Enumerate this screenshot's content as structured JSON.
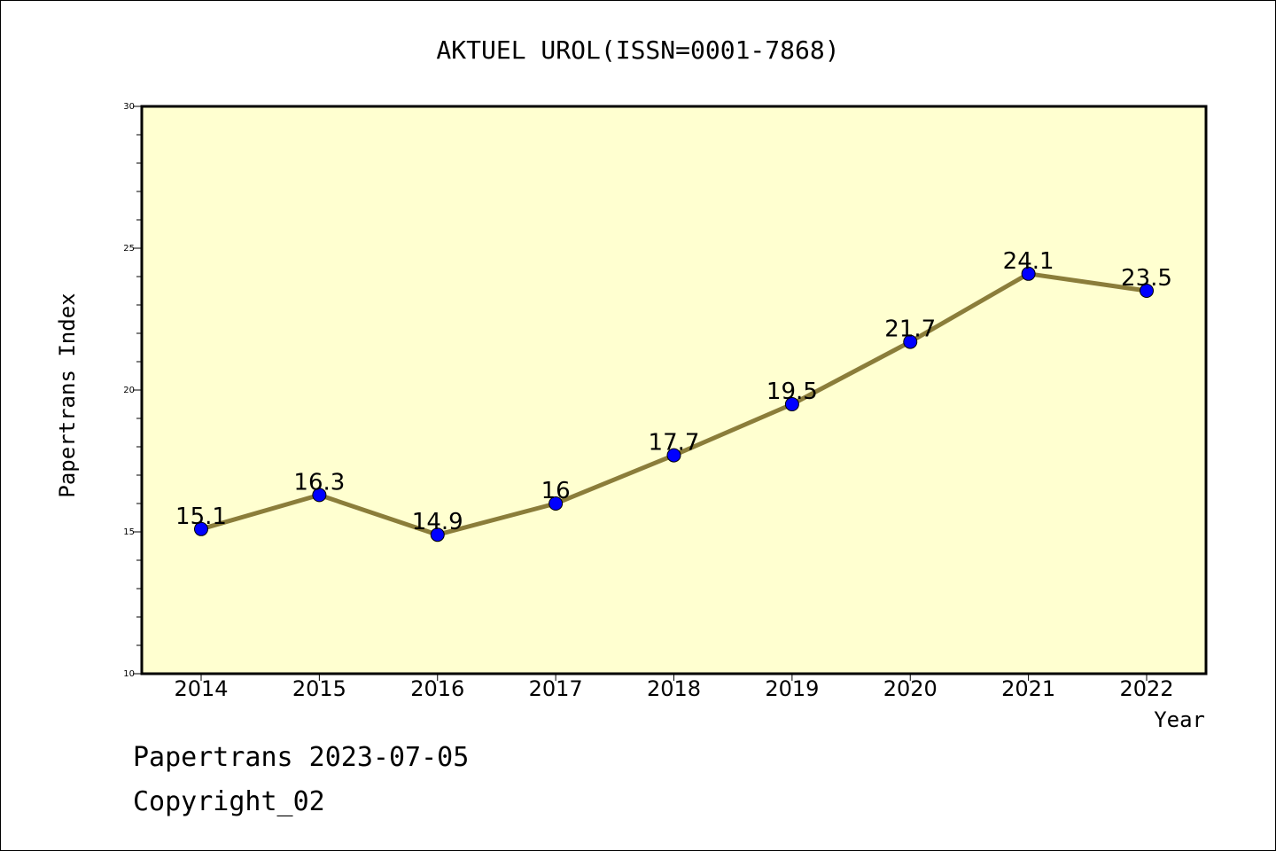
{
  "chart_data": {
    "type": "line",
    "title": "AKTUEL UROL(ISSN=0001-7868)",
    "xlabel": "Year",
    "ylabel": "Papertrans Index",
    "categories": [
      "2014",
      "2015",
      "2016",
      "2017",
      "2018",
      "2019",
      "2020",
      "2021",
      "2022"
    ],
    "values": [
      15.1,
      16.3,
      14.9,
      16,
      17.7,
      19.5,
      21.7,
      24.1,
      23.5
    ],
    "data_labels": [
      "15.1",
      "16.3",
      "14.9",
      "16",
      "17.7",
      "19.5",
      "21.7",
      "24.1",
      "23.5"
    ],
    "ylim": [
      10,
      30
    ],
    "yticks": [
      "10",
      "15",
      "20",
      "25",
      "30"
    ],
    "grid": false,
    "legend": "none",
    "colors": {
      "plot_background": "#ffffd0",
      "line": "#8b7d3a",
      "marker": "#0000ff"
    }
  },
  "footer": {
    "line1": "Papertrans 2023-07-05",
    "line2": "Copyright_02"
  }
}
